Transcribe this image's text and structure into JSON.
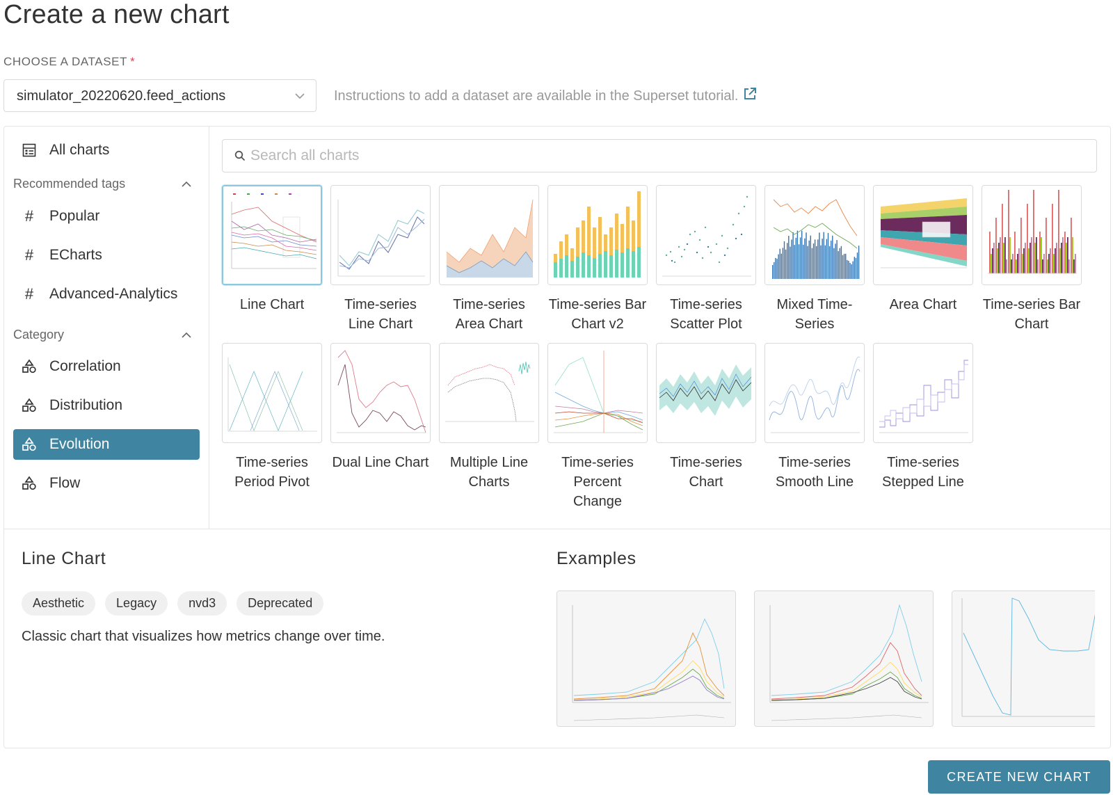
{
  "page": {
    "title": "Create a new chart"
  },
  "dataset": {
    "label": "CHOOSE A DATASET",
    "required_mark": "*",
    "selected": "simulator_20220620.feed_actions",
    "instructions": "Instructions to add a dataset are available in the Superset tutorial."
  },
  "sidebar": {
    "all_charts": {
      "label": "All charts",
      "icon": "table-icon"
    },
    "recommended_tags": {
      "label": "Recommended tags",
      "items": [
        {
          "label": "Popular",
          "icon": "hash-icon"
        },
        {
          "label": "ECharts",
          "icon": "hash-icon"
        },
        {
          "label": "Advanced-Analytics",
          "icon": "hash-icon"
        }
      ]
    },
    "category": {
      "label": "Category",
      "items": [
        {
          "label": "Correlation",
          "icon": "shapes-icon"
        },
        {
          "label": "Distribution",
          "icon": "shapes-icon"
        },
        {
          "label": "Evolution",
          "icon": "shapes-icon",
          "active": true
        },
        {
          "label": "Flow",
          "icon": "shapes-icon"
        }
      ]
    }
  },
  "search": {
    "placeholder": "Search all charts"
  },
  "charts": [
    {
      "name": "Line Chart",
      "selected": true,
      "thumb": "line-multi"
    },
    {
      "name": "Time-series Line Chart",
      "thumb": "line"
    },
    {
      "name": "Time-series Area Chart",
      "thumb": "area"
    },
    {
      "name": "Time-series Bar Chart v2",
      "thumb": "stacked-bar"
    },
    {
      "name": "Time-series Scatter Plot",
      "thumb": "scatter"
    },
    {
      "name": "Mixed Time-Series",
      "thumb": "mixed"
    },
    {
      "name": "Area Chart",
      "thumb": "stream"
    },
    {
      "name": "Time-series Bar Chart",
      "thumb": "grouped-bar"
    },
    {
      "name": "Time-series Period Pivot",
      "thumb": "pivot"
    },
    {
      "name": "Dual Line Chart",
      "thumb": "dual"
    },
    {
      "name": "Multiple Line Charts",
      "thumb": "multiple"
    },
    {
      "name": "Time-series Percent Change",
      "thumb": "percent"
    },
    {
      "name": "Time-series Chart",
      "thumb": "band"
    },
    {
      "name": "Time-series Smooth Line",
      "thumb": "smooth"
    },
    {
      "name": "Time-series Stepped Line",
      "thumb": "stepped"
    }
  ],
  "detail": {
    "title": "Line Chart",
    "tags": [
      "Aesthetic",
      "Legacy",
      "nvd3",
      "Deprecated"
    ],
    "description": "Classic chart that visualizes how metrics change over time.",
    "examples_title": "Examples"
  },
  "actions": {
    "create_label": "CREATE NEW CHART"
  },
  "colors": {
    "accent": "#3f85a1",
    "required": "#e04355"
  }
}
